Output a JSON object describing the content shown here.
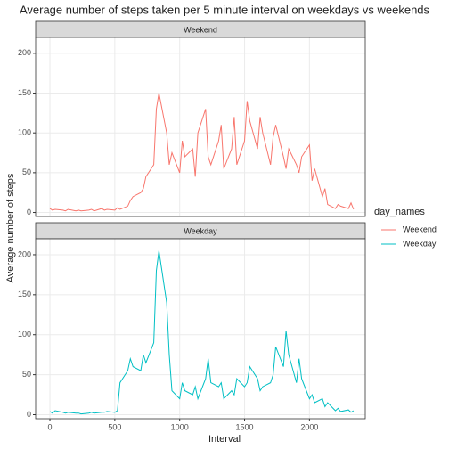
{
  "chart_data": {
    "type": "line",
    "title": "Average number of steps taken per 5 minute interval on weekdays vs weekends",
    "x_label": "Interval",
    "y_label": "Average number of steps",
    "legend_title": "day_names",
    "x": [
      0,
      20,
      40,
      100,
      120,
      140,
      200,
      220,
      240,
      300,
      320,
      340,
      400,
      420,
      440,
      500,
      520,
      540,
      600,
      620,
      640,
      700,
      720,
      740,
      800,
      820,
      840,
      900,
      920,
      940,
      1000,
      1020,
      1040,
      1100,
      1120,
      1140,
      1200,
      1220,
      1240,
      1300,
      1320,
      1340,
      1400,
      1420,
      1440,
      1500,
      1520,
      1540,
      1600,
      1620,
      1640,
      1700,
      1720,
      1740,
      1800,
      1820,
      1840,
      1900,
      1920,
      1940,
      2000,
      2020,
      2040,
      2100,
      2120,
      2140,
      2200,
      2220,
      2240,
      2300,
      2320,
      2340
    ],
    "series": [
      {
        "name": "Weekend",
        "color": "#F8766D",
        "values": [
          5,
          3,
          4,
          3,
          2,
          4,
          2,
          3,
          2,
          3,
          4,
          2,
          5,
          3,
          4,
          3,
          6,
          4,
          8,
          15,
          20,
          25,
          30,
          45,
          60,
          130,
          150,
          100,
          60,
          75,
          50,
          90,
          70,
          80,
          45,
          100,
          130,
          70,
          60,
          90,
          110,
          55,
          80,
          120,
          60,
          90,
          140,
          115,
          80,
          120,
          100,
          60,
          95,
          110,
          70,
          55,
          80,
          60,
          50,
          70,
          85,
          40,
          55,
          20,
          30,
          10,
          5,
          10,
          8,
          5,
          12,
          4
        ]
      },
      {
        "name": "Weekday",
        "color": "#00BFC4",
        "values": [
          4,
          2,
          5,
          3,
          2,
          3,
          2,
          2,
          1,
          2,
          3,
          2,
          3,
          3,
          4,
          3,
          5,
          40,
          55,
          70,
          60,
          55,
          75,
          65,
          90,
          180,
          205,
          140,
          75,
          30,
          20,
          40,
          30,
          25,
          35,
          20,
          45,
          70,
          40,
          35,
          40,
          20,
          30,
          25,
          45,
          35,
          40,
          60,
          45,
          30,
          35,
          40,
          50,
          85,
          60,
          105,
          75,
          40,
          70,
          45,
          20,
          25,
          15,
          20,
          10,
          15,
          5,
          8,
          4,
          6,
          3,
          5
        ]
      }
    ],
    "xlim": [
      -110,
      2430
    ],
    "xticks": [
      0,
      500,
      1000,
      1500,
      2000
    ],
    "ylim": [
      -5,
      220
    ],
    "yticks": [
      0,
      50,
      100,
      150,
      200
    ],
    "grid": true,
    "legend_position": "right"
  }
}
